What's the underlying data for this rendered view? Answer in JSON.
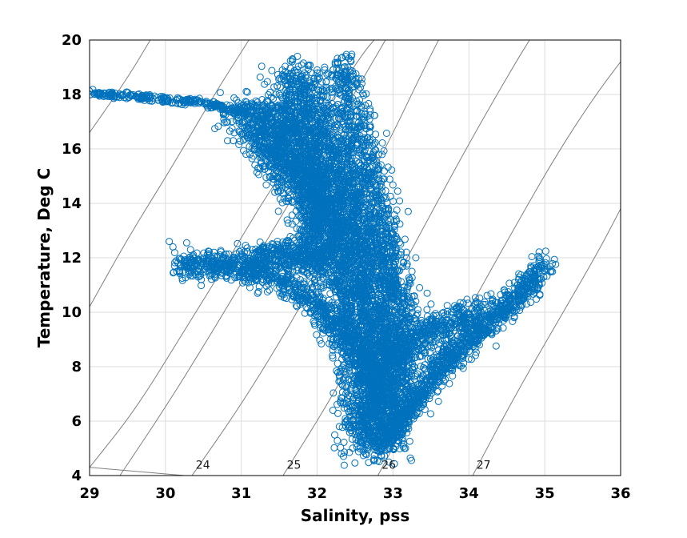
{
  "chart_data": {
    "type": "scatter",
    "title": "",
    "xlabel": "Salinity, pss",
    "ylabel": "Temperature, Deg C",
    "xlim": [
      29,
      36
    ],
    "ylim": [
      4,
      20
    ],
    "xticks": [
      "29",
      "30",
      "31",
      "32",
      "33",
      "34",
      "35",
      "36"
    ],
    "yticks": [
      "4",
      "6",
      "8",
      "10",
      "12",
      "14",
      "16",
      "18",
      "20"
    ],
    "grid": true,
    "marker": "open-circle",
    "marker_color": "#0072BD",
    "contour_color": "#808080",
    "density_contours": [
      {
        "label": "24",
        "points": [
          [
            29.0,
            4.3
          ],
          [
            30.25,
            4.0
          ]
        ]
      },
      {
        "label": "24",
        "points": [
          [
            30.35,
            4.0
          ],
          [
            31.0,
            6.6
          ],
          [
            31.7,
            9.8
          ],
          [
            32.3,
            12.9
          ],
          [
            32.9,
            16.0
          ],
          [
            33.4,
            18.9
          ],
          [
            33.6,
            20.0
          ]
        ]
      },
      {
        "label": "25",
        "points": [
          [
            31.55,
            4.0
          ],
          [
            32.2,
            6.9
          ],
          [
            32.8,
            10.0
          ],
          [
            33.4,
            13.1
          ],
          [
            34.0,
            16.2
          ],
          [
            34.6,
            19.1
          ],
          [
            34.8,
            20.0
          ]
        ]
      },
      {
        "label": "26",
        "points": [
          [
            32.8,
            4.0
          ],
          [
            33.4,
            7.1
          ],
          [
            34.0,
            10.1
          ],
          [
            34.6,
            13.1
          ],
          [
            35.2,
            16.0
          ],
          [
            35.7,
            18.1
          ],
          [
            36.0,
            19.2
          ]
        ]
      },
      {
        "label": "27",
        "points": [
          [
            34.05,
            4.0
          ],
          [
            34.6,
            6.9
          ],
          [
            35.2,
            9.8
          ],
          [
            35.7,
            12.2
          ],
          [
            36.0,
            13.8
          ]
        ]
      },
      {
        "label": "",
        "points": [
          [
            29.0,
            4.3
          ],
          [
            29.6,
            6.4
          ],
          [
            30.2,
            9.1
          ],
          [
            30.8,
            11.8
          ],
          [
            31.4,
            14.6
          ],
          [
            32.1,
            17.4
          ],
          [
            32.6,
            19.5
          ],
          [
            32.75,
            20.0
          ]
        ]
      },
      {
        "label": "",
        "points": [
          [
            29.0,
            10.2
          ],
          [
            29.5,
            12.7
          ],
          [
            30.1,
            15.4
          ],
          [
            30.6,
            17.8
          ],
          [
            31.1,
            20.0
          ]
        ]
      },
      {
        "label": "",
        "points": [
          [
            29.0,
            16.6
          ],
          [
            29.5,
            18.6
          ],
          [
            29.8,
            20.0
          ]
        ]
      },
      {
        "label": "",
        "points": [
          [
            29.4,
            4.0
          ],
          [
            30.0,
            6.5
          ],
          [
            30.6,
            9.2
          ],
          [
            31.2,
            12.0
          ],
          [
            31.8,
            14.8
          ],
          [
            32.4,
            17.6
          ],
          [
            32.9,
            20.0
          ]
        ]
      }
    ],
    "contour_labels": [
      {
        "text": "24",
        "x": 30.4,
        "y": 4.25
      },
      {
        "text": "25",
        "x": 31.6,
        "y": 4.25
      },
      {
        "text": "26",
        "x": 32.85,
        "y": 4.25
      },
      {
        "text": "27",
        "x": 34.1,
        "y": 4.25
      }
    ],
    "clusters": [
      {
        "name": "",
        "path": [
          [
            29.0,
            18.05
          ],
          [
            29.5,
            17.95
          ],
          [
            30.0,
            17.8
          ],
          [
            30.4,
            17.75
          ],
          [
            30.8,
            17.5
          ],
          [
            31.1,
            17.3
          ]
        ],
        "spread_x": 0.04,
        "spread_y": 0.06,
        "count": 260
      },
      {
        "name": "",
        "path": [
          [
            31.1,
            17.3
          ],
          [
            31.5,
            17.0
          ],
          [
            31.8,
            15.8
          ],
          [
            32.0,
            14.5
          ],
          [
            32.3,
            12.0
          ],
          [
            32.5,
            10.0
          ],
          [
            32.7,
            7.5
          ],
          [
            32.75,
            5.0
          ]
        ],
        "spread_x": 0.22,
        "spread_y": 0.4,
        "count": 2600
      },
      {
        "name": "",
        "path": [
          [
            31.7,
            18.8
          ],
          [
            32.0,
            17.0
          ],
          [
            32.3,
            15.0
          ],
          [
            32.6,
            12.5
          ],
          [
            32.8,
            10.0
          ],
          [
            33.0,
            8.0
          ],
          [
            32.8,
            5.2
          ]
        ],
        "spread_x": 0.2,
        "spread_y": 0.35,
        "count": 2200
      },
      {
        "name": "",
        "path": [
          [
            32.3,
            19.2
          ],
          [
            32.5,
            17.5
          ],
          [
            32.7,
            15.0
          ],
          [
            32.9,
            12.5
          ],
          [
            33.1,
            10.0
          ],
          [
            33.0,
            7.0
          ]
        ],
        "spread_x": 0.12,
        "spread_y": 0.3,
        "count": 900
      },
      {
        "name": "",
        "path": [
          [
            30.2,
            11.6
          ],
          [
            30.6,
            11.8
          ],
          [
            31.0,
            11.6
          ],
          [
            31.5,
            11.2
          ],
          [
            32.0,
            10.3
          ],
          [
            32.4,
            9.2
          ],
          [
            32.7,
            8.0
          ],
          [
            32.8,
            6.5
          ]
        ],
        "spread_x": 0.08,
        "spread_y": 0.25,
        "count": 900
      },
      {
        "name": "",
        "path": [
          [
            31.0,
            11.8
          ],
          [
            31.4,
            12.0
          ],
          [
            31.8,
            12.2
          ],
          [
            32.1,
            11.6
          ]
        ],
        "spread_x": 0.12,
        "spread_y": 0.3,
        "count": 400
      },
      {
        "name": "",
        "path": [
          [
            32.9,
            5.3
          ],
          [
            33.3,
            6.8
          ],
          [
            33.7,
            8.2
          ],
          [
            34.1,
            9.2
          ],
          [
            34.5,
            10.2
          ],
          [
            34.8,
            11.0
          ],
          [
            35.0,
            11.8
          ]
        ],
        "spread_x": 0.08,
        "spread_y": 0.25,
        "count": 1000
      },
      {
        "name": "",
        "path": [
          [
            33.0,
            8.5
          ],
          [
            33.5,
            9.3
          ],
          [
            33.9,
            9.8
          ],
          [
            34.2,
            10.0
          ]
        ],
        "spread_x": 0.12,
        "spread_y": 0.35,
        "count": 400
      },
      {
        "name": "",
        "path": [
          [
            31.2,
            16.5
          ],
          [
            31.5,
            15.5
          ],
          [
            31.9,
            14.8
          ],
          [
            32.1,
            13.5
          ],
          [
            31.9,
            12.0
          ]
        ],
        "spread_x": 0.15,
        "spread_y": 0.4,
        "count": 700
      }
    ],
    "outliers": [
      [
        30.05,
        12.6
      ],
      [
        30.1,
        12.4
      ],
      [
        30.12,
        11.7
      ],
      [
        30.15,
        11.5
      ],
      [
        30.28,
        12.55
      ],
      [
        30.33,
        12.3
      ],
      [
        33.2,
        13.7
      ],
      [
        33.05,
        13.75
      ],
      [
        33.1,
        12.5
      ],
      [
        33.18,
        12.0
      ],
      [
        33.3,
        12.0
      ],
      [
        33.25,
        11.5
      ],
      [
        33.35,
        10.9
      ],
      [
        33.28,
        10.6
      ],
      [
        33.45,
        10.7
      ],
      [
        33.5,
        10.3
      ],
      [
        33.3,
        10.4
      ],
      [
        34.6,
        9.85
      ],
      [
        32.0,
        18.9
      ],
      [
        32.1,
        18.9
      ],
      [
        32.35,
        18.7
      ],
      [
        32.45,
        19.4
      ],
      [
        32.1,
        16.0
      ],
      [
        31.5,
        16.5
      ]
    ]
  }
}
